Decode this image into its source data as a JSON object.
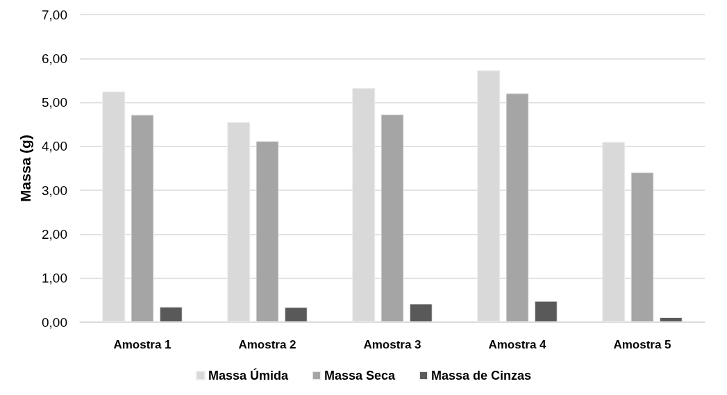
{
  "chart_data": {
    "type": "bar",
    "ylabel": "Massa (g)",
    "categories": [
      "Amostra 1",
      "Amostra 2",
      "Amostra 3",
      "Amostra 4",
      "Amostra 5"
    ],
    "series": [
      {
        "name": "Massa Úmida",
        "color": "#d9d9d9",
        "values": [
          5.25,
          4.55,
          5.33,
          5.73,
          4.1
        ]
      },
      {
        "name": "Massa Seca",
        "color": "#a5a5a5",
        "values": [
          4.72,
          4.12,
          4.73,
          5.21,
          3.41
        ]
      },
      {
        "name": "Massa de Cinzas",
        "color": "#595959",
        "values": [
          0.35,
          0.34,
          0.42,
          0.48,
          0.11
        ]
      }
    ],
    "ylim": [
      0,
      7
    ],
    "yticks": [
      {
        "value": 0,
        "label": "0,00"
      },
      {
        "value": 1,
        "label": "1,00"
      },
      {
        "value": 2,
        "label": "2,00"
      },
      {
        "value": 3,
        "label": "3,00"
      },
      {
        "value": 4,
        "label": "4,00"
      },
      {
        "value": 5,
        "label": "5,00"
      },
      {
        "value": 6,
        "label": "6,00"
      },
      {
        "value": 7,
        "label": "7,00"
      }
    ],
    "grid": "y",
    "legend": "bottom"
  }
}
